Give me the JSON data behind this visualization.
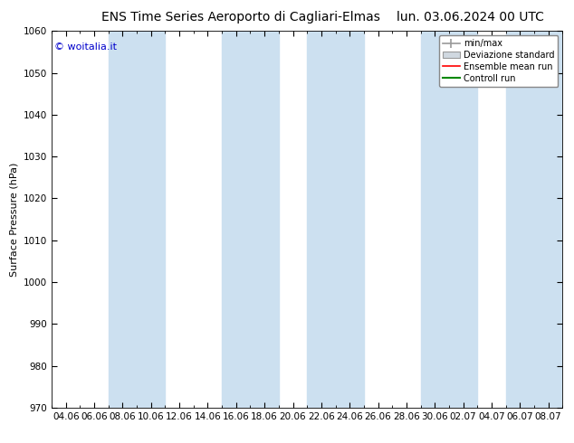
{
  "title_left": "ENS Time Series Aeroporto di Cagliari-Elmas",
  "title_right": "lun. 03.06.2024 00 UTC",
  "ylabel": "Surface Pressure (hPa)",
  "ylim": [
    970,
    1060
  ],
  "yticks": [
    970,
    980,
    990,
    1000,
    1010,
    1020,
    1030,
    1040,
    1050,
    1060
  ],
  "xtick_labels": [
    "04.06",
    "06.06",
    "08.06",
    "10.06",
    "12.06",
    "14.06",
    "16.06",
    "18.06",
    "20.06",
    "22.06",
    "24.06",
    "26.06",
    "28.06",
    "30.06",
    "02.07",
    "04.07",
    "06.07",
    "08.07"
  ],
  "watermark": "© woitalia.it",
  "watermark_color": "#0000cc",
  "band_color": "#cce0f0",
  "band_alpha": 1.0,
  "background_color": "#ffffff",
  "legend_entries": [
    "min/max",
    "Deviazione standard",
    "Ensemble mean run",
    "Controll run"
  ],
  "legend_colors": [
    "#999999",
    "#bbbbbb",
    "#ff0000",
    "#008800"
  ],
  "title_fontsize": 10,
  "axis_label_fontsize": 8,
  "tick_fontsize": 7.5
}
